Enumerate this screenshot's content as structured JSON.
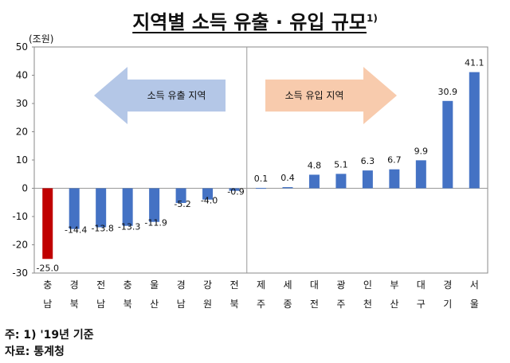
{
  "title": "지역별 소득 유출 · 유입 규모",
  "title_sup": "1)",
  "note": "주: 1) '19년 기준",
  "source": "자료: 통계청",
  "chart_data": {
    "type": "bar",
    "unit": "(조원)",
    "ylim": [
      -30,
      50
    ],
    "yticks": [
      50,
      40,
      30,
      20,
      10,
      0,
      -10,
      -20,
      -30
    ],
    "categories": [
      [
        "충",
        "남"
      ],
      [
        "경",
        "북"
      ],
      [
        "전",
        "남"
      ],
      [
        "충",
        "북"
      ],
      [
        "울",
        "산"
      ],
      [
        "경",
        "남"
      ],
      [
        "강",
        "원"
      ],
      [
        "전",
        "북"
      ],
      [
        "제",
        "주"
      ],
      [
        "세",
        "종"
      ],
      [
        "대",
        "전"
      ],
      [
        "광",
        "주"
      ],
      [
        "인",
        "천"
      ],
      [
        "부",
        "산"
      ],
      [
        "대",
        "구"
      ],
      [
        "경",
        "기"
      ],
      [
        "서",
        "울"
      ]
    ],
    "values": [
      -25.0,
      -14.4,
      -13.8,
      -13.3,
      -11.9,
      -5.2,
      -4.0,
      -0.9,
      0.1,
      0.4,
      4.8,
      5.1,
      6.3,
      6.7,
      9.9,
      30.9,
      41.1
    ],
    "value_labels": [
      "-25.0",
      "-14.4",
      "-13.8",
      "-13.3",
      "-11.9",
      "-5.2",
      "-4.0",
      "-0.9",
      "0.1",
      "0.4",
      "4.8",
      "5.1",
      "6.3",
      "6.7",
      "9.9",
      "30.9",
      "41.1"
    ],
    "highlight_color": "#c00000",
    "bar_color": "#4472c4",
    "outflow_label": "소득 유출 지역",
    "inflow_label": "소득 유입 지역",
    "outflow_arrow_color": "#b4c7e7",
    "inflow_arrow_color": "#f8cbad"
  }
}
